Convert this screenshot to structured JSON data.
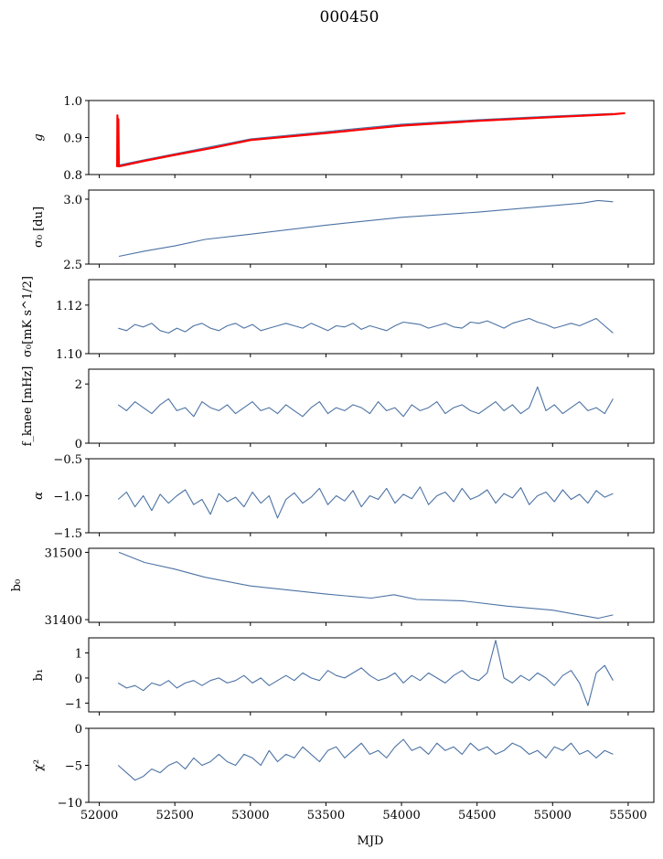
{
  "chart_data": {
    "type": "line",
    "title": "000450",
    "xlabel": "MJD",
    "xlim": [
      51930,
      55670
    ],
    "xticks": [
      52000,
      52500,
      53000,
      53500,
      54000,
      54500,
      55000,
      55500
    ],
    "colors": {
      "series": "#4c72a4",
      "highlight": "#ff0000"
    },
    "panels": [
      {
        "ylabel": "g",
        "ylim": [
          0.8,
          1.0
        ],
        "yticks": [
          "0.8",
          "0.9",
          "1.0"
        ],
        "series": [
          {
            "name": "g",
            "color": "#4c72a4",
            "points": [
              [
                52130,
                0.826
              ],
              [
                52300,
                0.84
              ],
              [
                52500,
                0.856
              ],
              [
                52750,
                0.876
              ],
              [
                53000,
                0.896
              ],
              [
                53500,
                0.916
              ],
              [
                54000,
                0.936
              ],
              [
                54500,
                0.948
              ],
              [
                55000,
                0.958
              ],
              [
                55400,
                0.965
              ]
            ]
          },
          {
            "name": "g (red)",
            "color": "#ff0000",
            "points": [
              [
                52118,
                0.82
              ],
              [
                52120,
                0.96
              ],
              [
                52123,
                0.83
              ],
              [
                52126,
                0.95
              ],
              [
                52130,
                0.822
              ],
              [
                52300,
                0.837
              ],
              [
                52500,
                0.853
              ],
              [
                52750,
                0.872
              ],
              [
                53000,
                0.893
              ],
              [
                53500,
                0.912
              ],
              [
                54000,
                0.932
              ],
              [
                54500,
                0.945
              ],
              [
                55000,
                0.955
              ],
              [
                55400,
                0.963
              ],
              [
                55480,
                0.966
              ]
            ]
          }
        ]
      },
      {
        "ylabel": "σ₀ [du]",
        "ylim": [
          2.5,
          3.07
        ],
        "yticks": [
          "2.5",
          "3.0"
        ],
        "series": [
          {
            "name": "sigma0_du",
            "color": "#4c72a4",
            "points": [
              [
                52130,
                2.56
              ],
              [
                52300,
                2.6
              ],
              [
                52500,
                2.64
              ],
              [
                52700,
                2.69
              ],
              [
                53000,
                2.73
              ],
              [
                53500,
                2.8
              ],
              [
                54000,
                2.86
              ],
              [
                54500,
                2.9
              ],
              [
                55000,
                2.95
              ],
              [
                55200,
                2.97
              ],
              [
                55300,
                2.99
              ],
              [
                55400,
                2.98
              ]
            ]
          }
        ]
      },
      {
        "ylabel": "σ₀[mK s^1/2]",
        "ylim": [
          1.1,
          1.1305
        ],
        "yticks": [
          "1.10",
          "1.12"
        ],
        "series": [
          {
            "name": "sigma0_mK",
            "color": "#4c72a4",
            "x_range": [
              52125,
              55400
            ],
            "values": [
              1.1105,
              1.1095,
              1.112,
              1.111,
              1.1125,
              1.1095,
              1.1085,
              1.1105,
              1.109,
              1.1115,
              1.1125,
              1.1105,
              1.1095,
              1.1115,
              1.1125,
              1.1105,
              1.112,
              1.1095,
              1.1105,
              1.1115,
              1.1125,
              1.1115,
              1.1105,
              1.1125,
              1.111,
              1.1095,
              1.1115,
              1.111,
              1.1125,
              1.11,
              1.1115,
              1.1105,
              1.1095,
              1.1115,
              1.113,
              1.1125,
              1.112,
              1.1105,
              1.1115,
              1.1125,
              1.111,
              1.1105,
              1.113,
              1.1125,
              1.1135,
              1.112,
              1.1105,
              1.1125,
              1.1135,
              1.1145,
              1.113,
              1.112,
              1.1105,
              1.1115,
              1.1125,
              1.1115,
              1.113,
              1.1145,
              1.1115,
              1.1085
            ]
          }
        ]
      },
      {
        "ylabel": "f_knee [mHz]",
        "ylim": [
          0,
          2.5
        ],
        "yticks": [
          "0",
          "2"
        ],
        "series": [
          {
            "name": "fknee",
            "color": "#4c72a4",
            "x_range": [
              52125,
              55400
            ],
            "values": [
              1.3,
              1.1,
              1.4,
              1.2,
              1.0,
              1.3,
              1.5,
              1.1,
              1.2,
              0.9,
              1.4,
              1.2,
              1.1,
              1.3,
              1.0,
              1.2,
              1.4,
              1.1,
              1.2,
              1.0,
              1.3,
              1.1,
              0.9,
              1.2,
              1.4,
              1.0,
              1.2,
              1.1,
              1.3,
              1.2,
              1.0,
              1.4,
              1.1,
              1.2,
              0.9,
              1.3,
              1.1,
              1.2,
              1.4,
              1.0,
              1.2,
              1.3,
              1.1,
              1.0,
              1.2,
              1.4,
              1.1,
              1.3,
              1.0,
              1.2,
              1.9,
              1.1,
              1.3,
              1.0,
              1.2,
              1.4,
              1.1,
              1.2,
              1.0,
              1.5
            ]
          }
        ]
      },
      {
        "ylabel": "α",
        "ylim": [
          -1.5,
          -0.5
        ],
        "yticks": [
          "−1.5",
          "−1.0",
          "−0.5"
        ],
        "series": [
          {
            "name": "alpha",
            "color": "#4c72a4",
            "x_range": [
              52125,
              55400
            ],
            "values": [
              -1.05,
              -0.95,
              -1.15,
              -1.0,
              -1.2,
              -0.98,
              -1.1,
              -1.0,
              -0.92,
              -1.12,
              -1.05,
              -1.25,
              -0.97,
              -1.08,
              -1.02,
              -1.15,
              -0.95,
              -1.1,
              -1.0,
              -1.3,
              -1.05,
              -0.96,
              -1.1,
              -1.02,
              -0.9,
              -1.12,
              -1.0,
              -1.07,
              -0.93,
              -1.15,
              -1.0,
              -1.05,
              -0.9,
              -1.1,
              -0.98,
              -1.04,
              -0.88,
              -1.12,
              -1.0,
              -0.95,
              -1.08,
              -0.9,
              -1.05,
              -1.0,
              -0.92,
              -1.1,
              -0.97,
              -1.03,
              -0.89,
              -1.12,
              -1.0,
              -0.95,
              -1.08,
              -0.92,
              -1.05,
              -0.98,
              -1.1,
              -0.93,
              -1.02,
              -0.97
            ]
          }
        ]
      },
      {
        "ylabel": "b₀",
        "ylim": [
          31396,
          31506
        ],
        "yticks": [
          "31400",
          "31500"
        ],
        "series": [
          {
            "name": "b0",
            "color": "#4c72a4",
            "points": [
              [
                52130,
                31500
              ],
              [
                52300,
                31485
              ],
              [
                52500,
                31475
              ],
              [
                52700,
                31463
              ],
              [
                53000,
                31450
              ],
              [
                53500,
                31438
              ],
              [
                53800,
                31432
              ],
              [
                53950,
                31437
              ],
              [
                54100,
                31430
              ],
              [
                54400,
                31428
              ],
              [
                54700,
                31420
              ],
              [
                55000,
                31414
              ],
              [
                55300,
                31402
              ],
              [
                55400,
                31407
              ]
            ]
          }
        ]
      },
      {
        "ylabel": "b₁",
        "ylim": [
          -1.35,
          1.6
        ],
        "yticks": [
          "−1",
          "0",
          "1"
        ],
        "series": [
          {
            "name": "b1",
            "color": "#4c72a4",
            "x_range": [
              52125,
              55400
            ],
            "values": [
              -0.2,
              -0.4,
              -0.3,
              -0.5,
              -0.2,
              -0.3,
              -0.1,
              -0.4,
              -0.2,
              -0.1,
              -0.3,
              -0.1,
              0.0,
              -0.2,
              -0.1,
              0.1,
              -0.2,
              0.0,
              -0.3,
              -0.1,
              0.1,
              -0.1,
              0.2,
              0.0,
              -0.1,
              0.3,
              0.1,
              0.0,
              0.2,
              0.4,
              0.1,
              -0.1,
              0.0,
              0.2,
              -0.2,
              0.1,
              -0.1,
              0.2,
              0.0,
              -0.2,
              0.1,
              0.3,
              0.0,
              -0.1,
              0.2,
              1.5,
              0.0,
              -0.2,
              0.1,
              -0.1,
              0.2,
              0.0,
              -0.3,
              0.1,
              0.3,
              -0.2,
              -1.1,
              0.2,
              0.5,
              -0.1
            ]
          }
        ]
      },
      {
        "ylabel": "χ²",
        "ylim": [
          -10,
          0
        ],
        "yticks": [
          "−10",
          "−5",
          "0"
        ],
        "series": [
          {
            "name": "chi2",
            "color": "#4c72a4",
            "x_range": [
              52125,
              55400
            ],
            "values": [
              -5,
              -6,
              -7,
              -6.5,
              -5.5,
              -6,
              -5,
              -4.5,
              -5.5,
              -4,
              -5,
              -4.5,
              -3.5,
              -4.5,
              -5,
              -3.5,
              -4,
              -5,
              -3,
              -4.5,
              -3.5,
              -4,
              -2.5,
              -3.5,
              -4.5,
              -3,
              -2.5,
              -4,
              -3,
              -2,
              -3.5,
              -3,
              -4,
              -2.5,
              -1.5,
              -3,
              -2.5,
              -3.5,
              -2,
              -3,
              -2.5,
              -3.5,
              -2,
              -3,
              -2.5,
              -3.5,
              -3,
              -2,
              -2.5,
              -3.5,
              -3,
              -4,
              -2.5,
              -3,
              -2,
              -3.5,
              -3,
              -4,
              -3,
              -3.5
            ]
          }
        ]
      }
    ]
  }
}
